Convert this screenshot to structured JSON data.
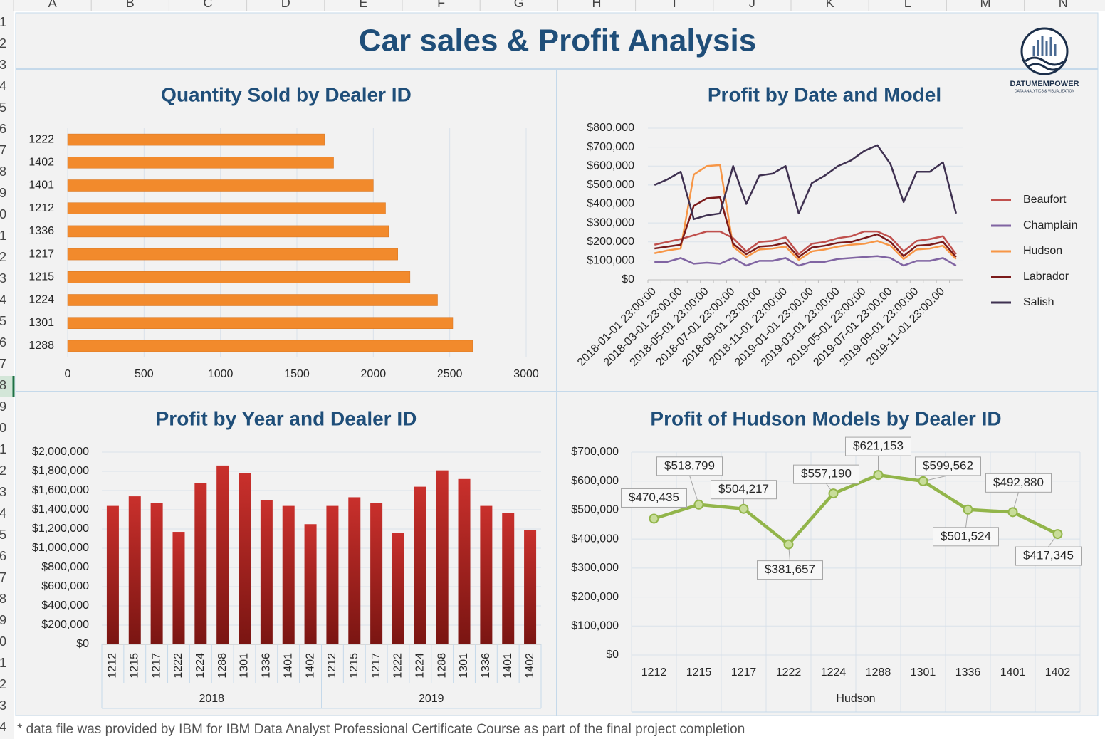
{
  "columns": [
    "A",
    "B",
    "C",
    "D",
    "E",
    "F",
    "G",
    "H",
    "I",
    "J",
    "K",
    "L",
    "M",
    "N"
  ],
  "rows": [
    "1",
    "2",
    "3",
    "4",
    "5",
    "6",
    "7",
    "8",
    "9",
    "10",
    "11",
    "12",
    "13",
    "14",
    "15",
    "16",
    "17",
    "18",
    "19",
    "20",
    "21",
    "22",
    "23",
    "24",
    "25",
    "26",
    "27",
    "28",
    "29",
    "30",
    "31",
    "32",
    "33",
    "34"
  ],
  "title": "Car sales & Profit Analysis",
  "logo": {
    "name": "DATUMEMPOWER",
    "tagline": "DATA ANALYTICS & VISUALIZATION"
  },
  "footnote": "* data file was provided by IBM for IBM Data Analyst Professional Certificate Course as part of the final project completion",
  "chart_data": [
    {
      "type": "hbar",
      "title": "Quantity Sold by Dealer ID",
      "categories": [
        "1222",
        "1402",
        "1401",
        "1212",
        "1336",
        "1217",
        "1215",
        "1224",
        "1301",
        "1288"
      ],
      "values": [
        1680,
        1740,
        2000,
        2080,
        2100,
        2160,
        2240,
        2420,
        2520,
        2650
      ],
      "color": "#f28a2c",
      "xlim": [
        0,
        3000
      ],
      "xticks": [
        0,
        500,
        1000,
        1500,
        2000,
        2500,
        3000
      ],
      "grid": true
    },
    {
      "type": "line",
      "title": "Profit by Date and Model",
      "categories": [
        "2018-01-01 23:00:00",
        null,
        "2018-03-01 23:00:00",
        null,
        "2018-05-01 23:00:00",
        null,
        "2018-07-01 23:00:00",
        null,
        "2018-09-01 23:00:00",
        null,
        "2018-11-01 23:00:00",
        null,
        "2019-01-01 23:00:00",
        null,
        "2019-03-01 23:00:00",
        null,
        "2019-05-01 23:00:00",
        null,
        "2019-07-01 23:00:00",
        null,
        "2019-09-01 23:00:00",
        null,
        "2019-11-01 23:00:00",
        null
      ],
      "series": [
        {
          "name": "Beaufort",
          "color": "#c0504d",
          "values": [
            185000,
            200000,
            215000,
            235000,
            255000,
            255000,
            220000,
            150000,
            200000,
            205000,
            225000,
            135000,
            190000,
            200000,
            220000,
            230000,
            255000,
            255000,
            225000,
            150000,
            205000,
            215000,
            230000,
            135000
          ]
        },
        {
          "name": "Champlain",
          "color": "#8064a2",
          "values": [
            95000,
            95000,
            115000,
            85000,
            90000,
            85000,
            115000,
            75000,
            100000,
            100000,
            115000,
            75000,
            95000,
            95000,
            110000,
            115000,
            120000,
            125000,
            115000,
            75000,
            100000,
            100000,
            115000,
            75000
          ]
        },
        {
          "name": "Hudson",
          "color": "#f79646",
          "values": [
            140000,
            155000,
            165000,
            555000,
            600000,
            605000,
            175000,
            120000,
            160000,
            165000,
            175000,
            105000,
            150000,
            160000,
            175000,
            185000,
            190000,
            205000,
            180000,
            110000,
            160000,
            165000,
            180000,
            110000
          ]
        },
        {
          "name": "Labrador",
          "color": "#7b1a1a",
          "values": [
            165000,
            175000,
            185000,
            390000,
            430000,
            435000,
            190000,
            135000,
            175000,
            180000,
            195000,
            120000,
            170000,
            180000,
            195000,
            200000,
            220000,
            240000,
            200000,
            125000,
            180000,
            185000,
            200000,
            120000
          ]
        },
        {
          "name": "Salish",
          "color": "#3f3151",
          "values": [
            500000,
            530000,
            570000,
            320000,
            340000,
            350000,
            600000,
            400000,
            550000,
            560000,
            600000,
            350000,
            510000,
            550000,
            600000,
            630000,
            680000,
            710000,
            610000,
            410000,
            570000,
            570000,
            620000,
            350000
          ]
        }
      ],
      "ylim": [
        0,
        800000
      ],
      "yticks": [
        {
          "value": 0,
          "label": "$0"
        },
        {
          "value": 100000,
          "label": "$100,000"
        },
        {
          "value": 200000,
          "label": "$200,000"
        },
        {
          "value": 300000,
          "label": "$300,000"
        },
        {
          "value": 400000,
          "label": "$400,000"
        },
        {
          "value": 500000,
          "label": "$500,000"
        },
        {
          "value": 600000,
          "label": "$600,000"
        },
        {
          "value": 700000,
          "label": "$700,000"
        },
        {
          "value": 800000,
          "label": "$800,000"
        }
      ],
      "legend": "right",
      "grid": true
    },
    {
      "type": "grouped-column",
      "title": "Profit by Year and Dealer ID",
      "groups": [
        {
          "name": "2018",
          "categories": [
            "1212",
            "1215",
            "1217",
            "1222",
            "1224",
            "1288",
            "1301",
            "1336",
            "1401",
            "1402"
          ],
          "values": [
            1440000,
            1540000,
            1470000,
            1170000,
            1680000,
            1860000,
            1780000,
            1500000,
            1440000,
            1250000
          ]
        },
        {
          "name": "2019",
          "categories": [
            "1212",
            "1215",
            "1217",
            "1222",
            "1224",
            "1288",
            "1301",
            "1336",
            "1401",
            "1402"
          ],
          "values": [
            1440000,
            1530000,
            1470000,
            1160000,
            1640000,
            1810000,
            1720000,
            1440000,
            1370000,
            1190000
          ]
        }
      ],
      "color": "#c9302c",
      "ylim": [
        0,
        2000000
      ],
      "yticks": [
        {
          "value": 0,
          "label": "$0"
        },
        {
          "value": 200000,
          "label": "$200,000"
        },
        {
          "value": 400000,
          "label": "$400,000"
        },
        {
          "value": 600000,
          "label": "$600,000"
        },
        {
          "value": 800000,
          "label": "$800,000"
        },
        {
          "value": 1000000,
          "label": "$1,000,000"
        },
        {
          "value": 1200000,
          "label": "$1,200,000"
        },
        {
          "value": 1400000,
          "label": "$1,400,000"
        },
        {
          "value": 1600000,
          "label": "$1,600,000"
        },
        {
          "value": 1800000,
          "label": "$1,800,000"
        },
        {
          "value": 2000000,
          "label": "$2,000,000"
        }
      ],
      "grid": true
    },
    {
      "type": "marker-line",
      "title": "Profit of Hudson Models by Dealer ID",
      "categories": [
        "1212",
        "1215",
        "1217",
        "1222",
        "1224",
        "1288",
        "1301",
        "1336",
        "1401",
        "1402"
      ],
      "group": "Hudson",
      "values": [
        470435,
        518799,
        504217,
        381657,
        557190,
        621153,
        599562,
        501524,
        492880,
        417345
      ],
      "value_labels": [
        "$470,435",
        "$518,799",
        "$504,217",
        "$381,657",
        "$557,190",
        "$621,153",
        "$599,562",
        "$501,524",
        "$492,880",
        "$417,345"
      ],
      "color": "#92b54a",
      "ylim": [
        0,
        700000
      ],
      "yticks": [
        {
          "value": 0,
          "label": "$0"
        },
        {
          "value": 100000,
          "label": "$100,000"
        },
        {
          "value": 200000,
          "label": "$200,000"
        },
        {
          "value": 300000,
          "label": "$300,000"
        },
        {
          "value": 400000,
          "label": "$400,000"
        },
        {
          "value": 500000,
          "label": "$500,000"
        },
        {
          "value": 600000,
          "label": "$600,000"
        },
        {
          "value": 700000,
          "label": "$700,000"
        }
      ],
      "grid": true
    }
  ]
}
